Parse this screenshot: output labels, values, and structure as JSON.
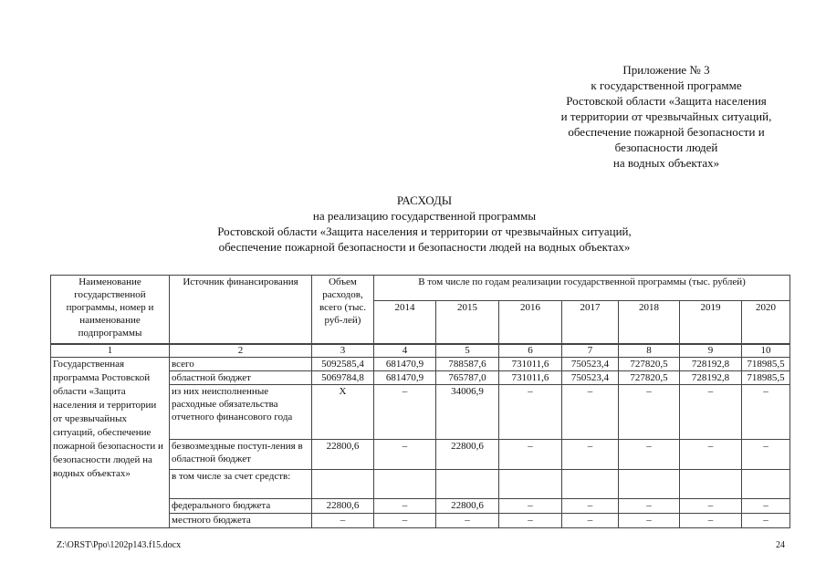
{
  "appendix": {
    "lines": [
      "Приложение № 3",
      "к государственной программе",
      "Ростовской области «Защита населения",
      "и территории от чрезвычайных ситуаций,",
      "обеспечение пожарной безопасности и",
      "безопасности людей",
      "на водных объектах»"
    ]
  },
  "title": {
    "lines": [
      "РАСХОДЫ",
      "на реализацию государственной программы",
      "Ростовской области «Защита населения и территории от чрезвычайных ситуаций,",
      "обеспечение пожарной безопасности и безопасности людей на водных объектах»"
    ]
  },
  "table": {
    "headers": {
      "name": "Наименование государственной программы, номер и наименование подпрограммы",
      "source": "Источник финансирования",
      "total": "Объем расходов, всего (тыс. руб-лей)",
      "by_years": "В том числе по годам реализации государственной программы (тыс. рублей)",
      "years": [
        "2014",
        "2015",
        "2016",
        "2017",
        "2018",
        "2019",
        "2020"
      ]
    },
    "column_numbers": [
      "1",
      "2",
      "3",
      "4",
      "5",
      "6",
      "7",
      "8",
      "9",
      "10"
    ],
    "program_name": "Государственная программа Ростовской области «Защита населения и территории от чрезвычайных ситуаций, обеспечение пожарной безопасности и безопасности людей на водных объектах»",
    "rows": [
      {
        "source": "всего",
        "total": "5092585,4",
        "years": [
          "681470,9",
          "788587,6",
          "731011,6",
          "750523,4",
          "727820,5",
          "728192,8",
          "718985,5"
        ]
      },
      {
        "source": "областной бюджет",
        "total": "5069784,8",
        "years": [
          "681470,9",
          "765787,0",
          "731011,6",
          "750523,4",
          "727820,5",
          "728192,8",
          "718985,5"
        ]
      },
      {
        "source": "из них неисполненные расходные обязательства отчетного финансового года",
        "total": "X",
        "years": [
          "–",
          "34006,9",
          "–",
          "–",
          "–",
          "–",
          "–"
        ]
      },
      {
        "source": "безвозмездные поступ-ления в областной бюджет",
        "total": "22800,6",
        "years": [
          "–",
          "22800,6",
          "–",
          "–",
          "–",
          "–",
          "–"
        ]
      },
      {
        "source": "в том числе за счет средств:",
        "total": "",
        "years": [
          "",
          "",
          "",
          "",
          "",
          "",
          ""
        ]
      },
      {
        "source": "федерального бюджета",
        "total": "22800,6",
        "years": [
          "–",
          "22800,6",
          "–",
          "–",
          "–",
          "–",
          "–"
        ]
      },
      {
        "source": "местного бюджета",
        "total": "–",
        "years": [
          "–",
          "–",
          "–",
          "–",
          "–",
          "–",
          "–"
        ]
      }
    ]
  },
  "footer": {
    "file_path": "Z:\\ORST\\Ppo\\1202p143.f15.docx",
    "page_number": "24"
  }
}
